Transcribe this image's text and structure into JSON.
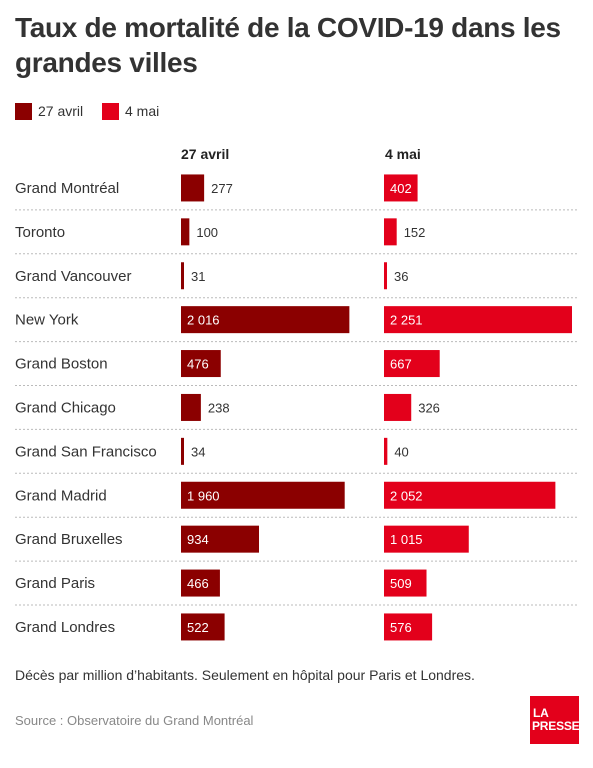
{
  "title": "Taux de mortalité de la COVID-19 dans les grandes villes",
  "legend": [
    {
      "label": "27 avril",
      "color": "#8b0000"
    },
    {
      "label": "4 mai",
      "color": "#e3001b"
    }
  ],
  "column_headers": [
    "27 avril",
    "4 mai"
  ],
  "note": "Décès par million d’habitants. Seulement en hôpital pour Paris et Londres.",
  "source": "Source : Observatoire du Grand Montréal",
  "logo": {
    "line1": "LA",
    "line2": "PRESSE"
  },
  "chart_data": {
    "type": "bar",
    "orientation": "horizontal",
    "categories": [
      "Grand Montréal",
      "Toronto",
      "Grand Vancouver",
      "New York",
      "Grand Boston",
      "Grand Chicago",
      "Grand San Francisco",
      "Grand Madrid",
      "Grand Bruxelles",
      "Grand Paris",
      "Grand Londres"
    ],
    "series": [
      {
        "name": "27 avril",
        "color": "#8b0000",
        "values": [
          277,
          100,
          31,
          2016,
          476,
          238,
          34,
          1960,
          934,
          466,
          522
        ],
        "labels": [
          "277",
          "100",
          "31",
          "2 016",
          "476",
          "238",
          "34",
          "1 960",
          "934",
          "466",
          "522"
        ]
      },
      {
        "name": "4 mai",
        "color": "#e3001b",
        "values": [
          402,
          152,
          36,
          2251,
          667,
          326,
          40,
          2052,
          1015,
          509,
          576
        ],
        "labels": [
          "402",
          "152",
          "36",
          "2 251",
          "667",
          "326",
          "40",
          "2 052",
          "1 015",
          "509",
          "576"
        ]
      }
    ],
    "title": "Taux de mortalité de la COVID-19 dans les grandes villes",
    "xlabel": "",
    "ylabel": "",
    "grid": false,
    "legend_position": "top-left"
  }
}
